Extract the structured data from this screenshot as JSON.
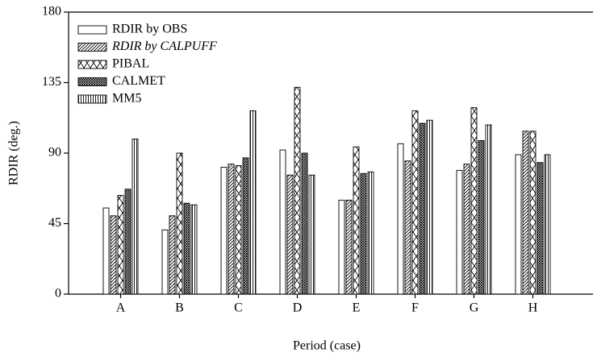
{
  "chart_data": {
    "type": "bar",
    "x_label": "Period (case)",
    "y_label": "RDIR (deg.)",
    "categories": [
      "A",
      "B",
      "C",
      "D",
      "E",
      "F",
      "G",
      "H"
    ],
    "series": [
      {
        "name": "RDIR by OBS",
        "values": [
          55,
          41,
          81,
          92,
          60,
          96,
          79,
          89
        ]
      },
      {
        "name": "RDIR by CALPUFF",
        "values": [
          50,
          50,
          83,
          76,
          60,
          85,
          83,
          104
        ]
      },
      {
        "name": "PIBAL",
        "values": [
          63,
          90,
          82,
          132,
          94,
          117,
          119,
          104
        ]
      },
      {
        "name": "CALMET",
        "values": [
          67,
          58,
          87,
          90,
          77,
          109,
          98,
          84
        ]
      },
      {
        "name": "MM5",
        "values": [
          99,
          57,
          117,
          76,
          78,
          111,
          108,
          89
        ]
      }
    ],
    "ylim": [
      0,
      180
    ],
    "yticks": [
      0,
      45,
      90,
      135,
      180
    ],
    "legend": "upper left"
  }
}
